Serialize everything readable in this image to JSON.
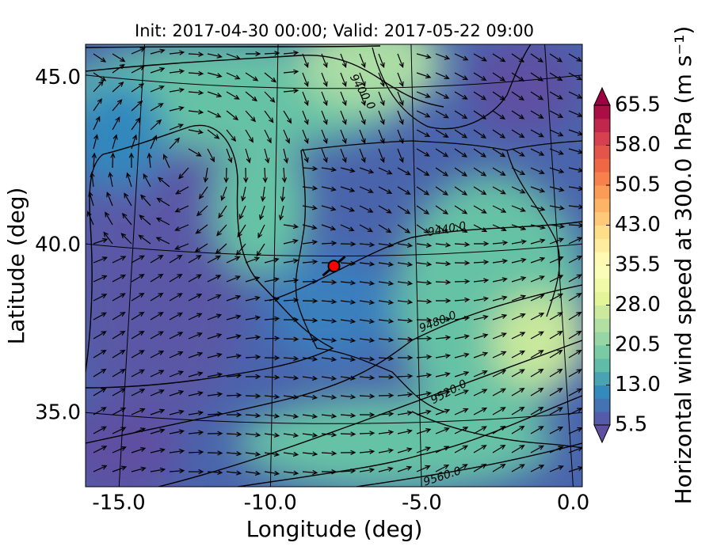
{
  "chart_data": {
    "type": "map",
    "title": "Init: 2017-04-30 00:00; Valid: 2017-05-22 09:00",
    "xlabel": "Longitude (deg)",
    "ylabel": "Latitude (deg)",
    "xlim": [
      -16.1,
      0.3
    ],
    "ylim": [
      32.8,
      46.0
    ],
    "xticks": [
      {
        "value": -15,
        "label": "-15.0"
      },
      {
        "value": -10,
        "label": "-10.0"
      },
      {
        "value": -5,
        "label": "-5.0"
      },
      {
        "value": 0,
        "label": "0.0"
      }
    ],
    "yticks": [
      {
        "value": 35,
        "label": "35.0"
      },
      {
        "value": 40,
        "label": "40.0"
      },
      {
        "value": 45,
        "label": "45.0"
      }
    ],
    "grid": true,
    "contour_labels": [
      "9400.0",
      "9440.0",
      "9480.0",
      "9520.0",
      "9560.0"
    ],
    "marker": {
      "lon": -7.9,
      "lat": 39.7,
      "color": "#ff0000"
    },
    "colorbar": {
      "label": "Horizontal wind speed at 300.0 hPa (m s⁻¹)",
      "clim": [
        5.5,
        65.5
      ],
      "ticks": [
        5.5,
        {
          "value": 13,
          "label": "13.0"
        },
        20.5,
        {
          "value": 28,
          "label": "28.0"
        },
        35.5,
        {
          "value": 43,
          "label": "43.0"
        },
        50.5,
        {
          "value": 58,
          "label": "58.0"
        },
        65.5
      ],
      "colors": [
        "#5e4fa2",
        "#3288bd",
        "#66c2a5",
        "#abdda4",
        "#e6f598",
        "#ffffbf",
        "#fee08b",
        "#fdae61",
        "#f46d43",
        "#d53e4f",
        "#9e0142"
      ]
    }
  }
}
